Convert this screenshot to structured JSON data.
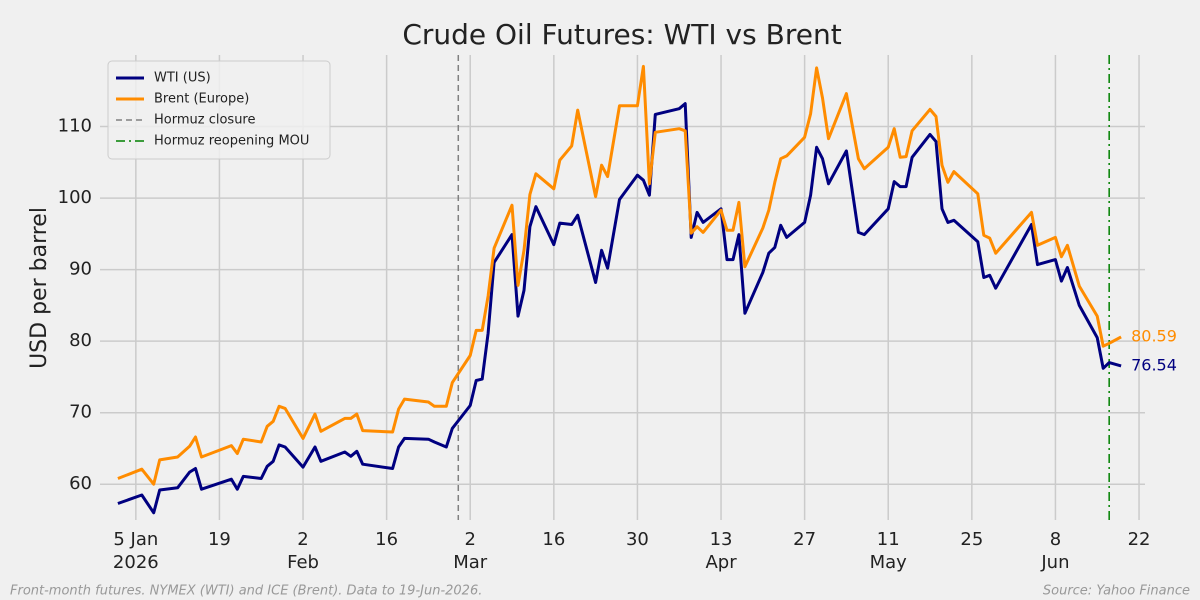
{
  "chart_data": {
    "type": "line",
    "title": "Crude Oil Futures: WTI vs Brent",
    "y_label": "USD per barrel",
    "note": "Front-month futures. NYMEX (WTI) and ICE (Brent). Data to 19-Jun-2026.",
    "source": "Source: Yahoo Finance",
    "x": [
      "2026-01-02",
      "2026-01-06",
      "2026-01-08",
      "2026-01-09",
      "2026-01-12",
      "2026-01-14",
      "2026-01-15",
      "2026-01-16",
      "2026-01-21",
      "2026-01-22",
      "2026-01-23",
      "2026-01-26",
      "2026-01-27",
      "2026-01-28",
      "2026-01-29",
      "2026-01-30",
      "2026-02-02",
      "2026-02-04",
      "2026-02-05",
      "2026-02-09",
      "2026-02-10",
      "2026-02-11",
      "2026-02-12",
      "2026-02-17",
      "2026-02-18",
      "2026-02-19",
      "2026-02-23",
      "2026-02-24",
      "2026-02-26",
      "2026-02-27",
      "2026-03-02",
      "2026-03-03",
      "2026-03-04",
      "2026-03-05",
      "2026-03-06",
      "2026-03-09",
      "2026-03-10",
      "2026-03-11",
      "2026-03-12",
      "2026-03-13",
      "2026-03-16",
      "2026-03-17",
      "2026-03-19",
      "2026-03-20",
      "2026-03-23",
      "2026-03-24",
      "2026-03-25",
      "2026-03-27",
      "2026-03-30",
      "2026-03-31",
      "2026-04-01",
      "2026-04-02",
      "2026-04-06",
      "2026-04-07",
      "2026-04-08",
      "2026-04-09",
      "2026-04-10",
      "2026-04-13",
      "2026-04-14",
      "2026-04-15",
      "2026-04-16",
      "2026-04-17",
      "2026-04-20",
      "2026-04-21",
      "2026-04-22",
      "2026-04-23",
      "2026-04-24",
      "2026-04-27",
      "2026-04-28",
      "2026-04-29",
      "2026-04-30",
      "2026-05-01",
      "2026-05-04",
      "2026-05-06",
      "2026-05-07",
      "2026-05-11",
      "2026-05-12",
      "2026-05-13",
      "2026-05-14",
      "2026-05-15",
      "2026-05-18",
      "2026-05-19",
      "2026-05-20",
      "2026-05-21",
      "2026-05-22",
      "2026-05-26",
      "2026-05-27",
      "2026-05-28",
      "2026-05-29",
      "2026-06-04",
      "2026-06-05",
      "2026-06-08",
      "2026-06-09",
      "2026-06-10",
      "2026-06-12",
      "2026-06-15",
      "2026-06-16",
      "2026-06-17",
      "2026-06-19"
    ],
    "series": [
      {
        "name": "WTI (US)",
        "color": "#000080",
        "values": [
          57.3,
          58.5,
          56.0,
          59.2,
          59.5,
          61.7,
          62.2,
          59.3,
          60.7,
          59.3,
          61.1,
          60.8,
          62.5,
          63.2,
          65.5,
          65.2,
          62.4,
          65.2,
          63.2,
          64.5,
          63.9,
          64.6,
          62.8,
          62.2,
          65.2,
          66.4,
          66.3,
          65.9,
          65.2,
          67.8,
          71.0,
          74.5,
          74.7,
          81.1,
          91.0,
          94.9,
          83.5,
          87.1,
          96.0,
          98.8,
          93.5,
          96.5,
          96.3,
          97.6,
          88.2,
          92.7,
          90.2,
          99.8,
          103.2,
          102.5,
          100.4,
          111.7,
          112.5,
          113.2,
          94.5,
          98.0,
          96.6,
          98.5,
          91.4,
          91.4,
          94.9,
          83.9,
          89.6,
          92.3,
          93.1,
          96.2,
          94.5,
          96.6,
          100.4,
          107.1,
          105.5,
          102.0,
          106.6,
          95.2,
          94.9,
          98.5,
          102.3,
          101.6,
          101.6,
          105.7,
          108.9,
          107.9,
          98.5,
          96.6,
          96.9,
          93.9,
          88.9,
          89.2,
          87.4,
          96.3,
          90.7,
          91.4,
          88.4,
          90.3,
          85.0,
          80.5,
          76.2,
          77.0,
          76.54
        ]
      },
      {
        "name": "Brent (Europe)",
        "color": "#ff8c00",
        "values": [
          60.8,
          62.1,
          60.0,
          63.4,
          63.8,
          65.3,
          66.6,
          63.8,
          65.4,
          64.3,
          66.3,
          65.9,
          68.1,
          68.8,
          70.9,
          70.6,
          66.4,
          69.8,
          67.4,
          69.2,
          69.2,
          69.8,
          67.5,
          67.3,
          70.5,
          71.9,
          71.5,
          70.9,
          70.9,
          74.2,
          78.0,
          81.5,
          81.5,
          86.3,
          93.0,
          99.0,
          87.8,
          92.7,
          100.5,
          103.4,
          101.3,
          105.3,
          107.3,
          112.3,
          100.2,
          104.6,
          103.0,
          112.9,
          112.9,
          118.4,
          102.0,
          109.2,
          109.7,
          109.4,
          95.1,
          96.0,
          95.2,
          98.3,
          95.5,
          95.5,
          99.4,
          90.4,
          95.8,
          98.3,
          102.2,
          105.5,
          105.9,
          108.5,
          111.8,
          118.2,
          114.0,
          108.3,
          114.6,
          105.5,
          104.1,
          107.1,
          109.7,
          105.7,
          105.8,
          109.4,
          112.4,
          111.4,
          104.6,
          102.2,
          103.7,
          100.6,
          94.8,
          94.4,
          92.3,
          98.0,
          93.4,
          94.5,
          91.8,
          93.4,
          87.7,
          83.5,
          79.3,
          79.7,
          80.59
        ]
      }
    ],
    "events": [
      {
        "date": "2026-02-28",
        "label": "Hormuz closure",
        "color": "#808080",
        "style": "dashed"
      },
      {
        "date": "2026-06-17",
        "label": "Hormuz reopening MOU",
        "color": "#008000",
        "style": "dashdot"
      }
    ],
    "xlim": [
      "2025-12-30",
      "2026-06-23"
    ],
    "xticks": [
      {
        "value": "2026-01-05",
        "label": [
          "5 Jan",
          "2026"
        ]
      },
      {
        "value": "2026-01-19",
        "label": [
          "19"
        ]
      },
      {
        "value": "2026-02-02",
        "label": [
          "2",
          "Feb"
        ]
      },
      {
        "value": "2026-02-16",
        "label": [
          "16"
        ]
      },
      {
        "value": "2026-03-02",
        "label": [
          "2",
          "Mar"
        ]
      },
      {
        "value": "2026-03-16",
        "label": [
          "16"
        ]
      },
      {
        "value": "2026-03-30",
        "label": [
          "30"
        ]
      },
      {
        "value": "2026-04-13",
        "label": [
          "13",
          "Apr"
        ]
      },
      {
        "value": "2026-04-27",
        "label": [
          "27"
        ]
      },
      {
        "value": "2026-05-11",
        "label": [
          "11",
          "May"
        ]
      },
      {
        "value": "2026-05-25",
        "label": [
          "25"
        ]
      },
      {
        "value": "2026-06-08",
        "label": [
          "8",
          "Jun"
        ]
      },
      {
        "value": "2026-06-22",
        "label": [
          "22"
        ]
      }
    ],
    "ylim": [
      55,
      120
    ],
    "yticks": [
      60,
      70,
      80,
      90,
      100,
      110
    ],
    "grid": true,
    "legend": "upper left"
  }
}
